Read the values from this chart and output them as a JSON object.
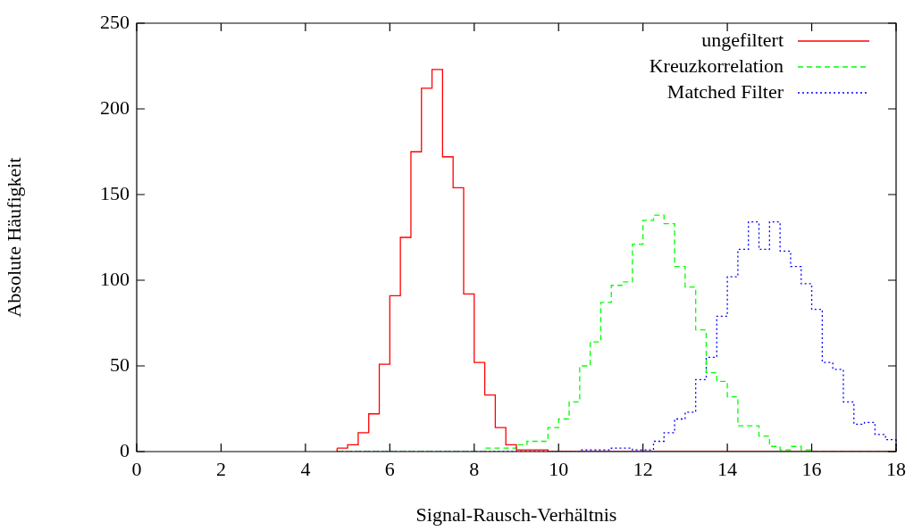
{
  "chart_data": {
    "type": "histogram",
    "xlabel": "Signal-Rausch-Verhältnis",
    "ylabel": "Absolute Häufigkeit",
    "bins": [
      4.75,
      5,
      5.25,
      5.5,
      5.75,
      6,
      6.25,
      6.5,
      6.75,
      7,
      7.25,
      7.5,
      7.75,
      8,
      8.25,
      8.5,
      8.75,
      9,
      9.25,
      9.5,
      9.75,
      10,
      10.25,
      10.5,
      10.75,
      11,
      11.25,
      11.5,
      11.75,
      12,
      12.25,
      12.5,
      12.75,
      13,
      13.25,
      13.5,
      13.75,
      14,
      14.25,
      14.5,
      14.75,
      15,
      15.25,
      15.5,
      15.75,
      16,
      16.25,
      16.5,
      16.75,
      17,
      17.25,
      17.5,
      17.75,
      18
    ],
    "series": [
      {
        "name": "ungefiltert",
        "color": "#ff0000",
        "line_style": "solid",
        "values": [
          2,
          4,
          11,
          22,
          51,
          91,
          125,
          175,
          212,
          223,
          172,
          154,
          92,
          52,
          33,
          14,
          4,
          1,
          1,
          1,
          0,
          0,
          0,
          0,
          0,
          0,
          0,
          0,
          0,
          0,
          0,
          0,
          0,
          0,
          0,
          0,
          0,
          0,
          0,
          0,
          0,
          0,
          0,
          0,
          0,
          0,
          0,
          0,
          0,
          0,
          0,
          0,
          0
        ]
      },
      {
        "name": "Kreuzkorrelation",
        "color": "#00ff00",
        "line_style": "dashed",
        "values": [
          0,
          0,
          0,
          0,
          0,
          0,
          0,
          0,
          0,
          0,
          0,
          0,
          0,
          0,
          2,
          2,
          2,
          4,
          6,
          6,
          14,
          19,
          29,
          50,
          64,
          87,
          97,
          99,
          121,
          135,
          138,
          133,
          108,
          96,
          71,
          46,
          41,
          32,
          15,
          15,
          9,
          3,
          1,
          3,
          1,
          0,
          0,
          0,
          0,
          0,
          0,
          0,
          0
        ]
      },
      {
        "name": "Matched Filter",
        "color": "#0000ff",
        "line_style": "dotted",
        "values": [
          0,
          0,
          0,
          0,
          0,
          0,
          0,
          0,
          0,
          0,
          0,
          0,
          0,
          0,
          0,
          0,
          0,
          0,
          0,
          0,
          0,
          0,
          0,
          1,
          1,
          1,
          2,
          2,
          1,
          1,
          6,
          11,
          19,
          23,
          42,
          55,
          79,
          102,
          118,
          134,
          118,
          134,
          117,
          108,
          98,
          83,
          52,
          48,
          29,
          16,
          17,
          10,
          7
        ]
      }
    ],
    "xlim": [
      0,
      18
    ],
    "xticks": [
      0,
      2,
      4,
      6,
      8,
      10,
      12,
      14,
      16,
      18
    ],
    "ylim": [
      0,
      250
    ],
    "yticks": [
      0,
      50,
      100,
      150,
      200,
      250
    ],
    "grid": false,
    "legend": "top right"
  }
}
